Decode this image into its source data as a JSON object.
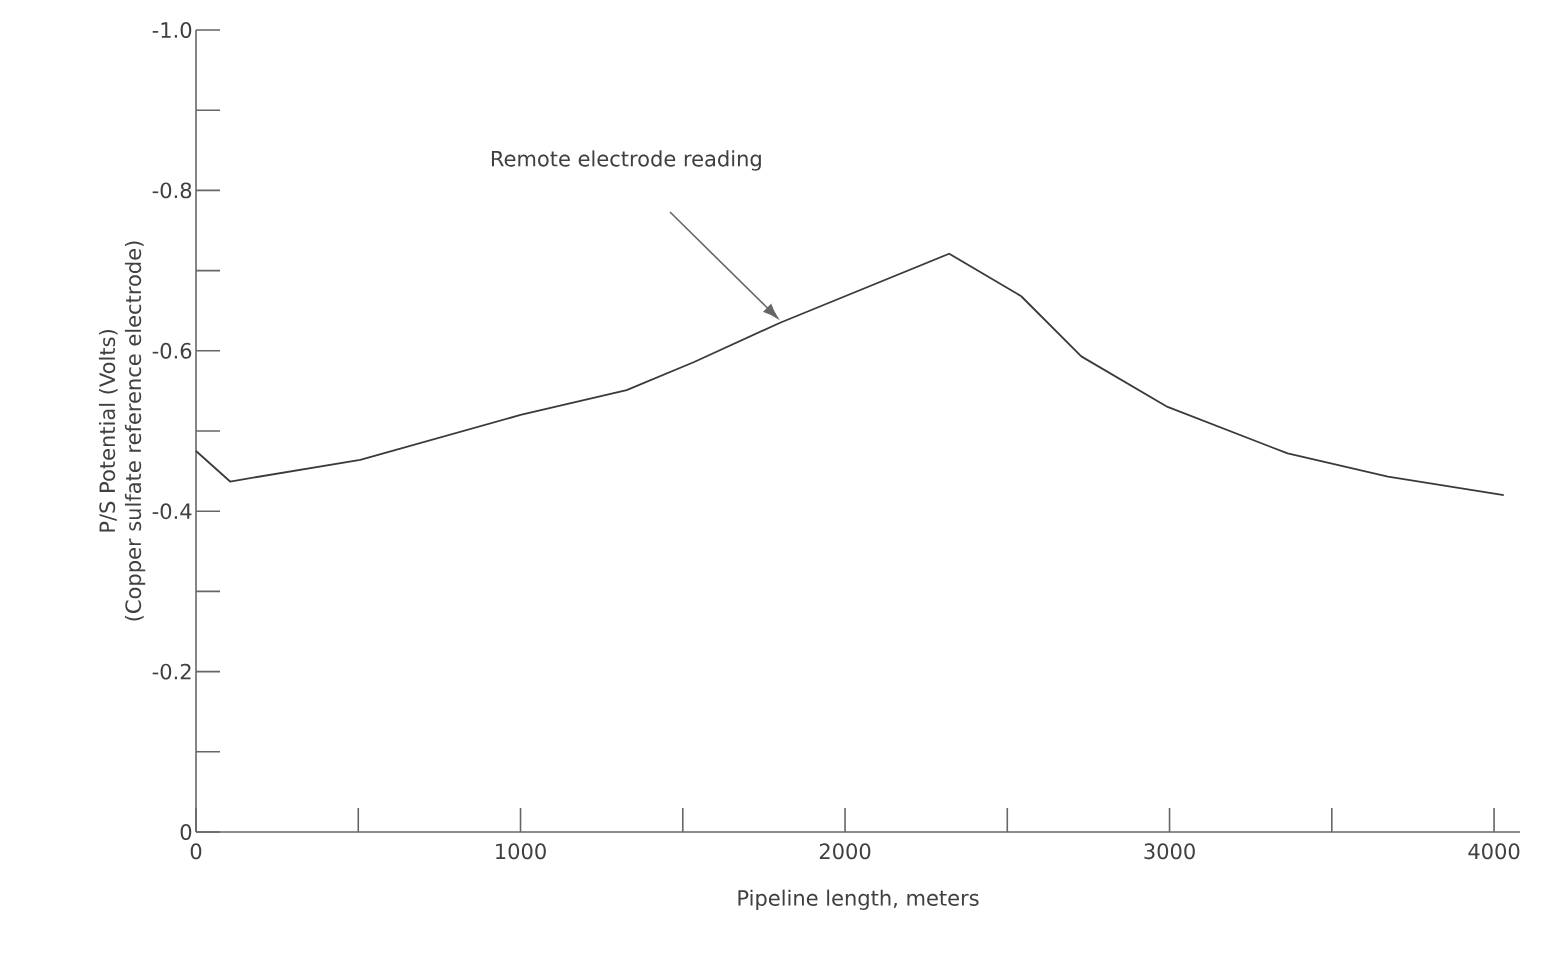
{
  "chart_data": {
    "type": "line",
    "xlabel": "Pipeline length, meters",
    "ylabel": "P/S Potential (Volts) (Copper sulfate reference electrode)",
    "x": [
      0,
      105,
      506,
      1000,
      1327,
      1535,
      1800,
      2321,
      2543,
      2728,
      2994,
      3364,
      3673,
      4030
    ],
    "series": [
      {
        "color": "#3a3a3a",
        "values": [
          -0.475,
          -0.437,
          -0.464,
          -0.52,
          -0.551,
          -0.586,
          -0.635,
          -0.721,
          -0.668,
          -0.593,
          -0.53,
          -0.472,
          -0.443,
          -0.42
        ]
      }
    ],
    "xlim": [
      0,
      4080
    ],
    "ylim": [
      0,
      -1.0
    ],
    "xticks": [
      0,
      {
        "value": 500,
        "label": null
      },
      1000,
      {
        "value": 1500,
        "label": null
      },
      2000,
      {
        "value": 2500,
        "label": null
      },
      3000,
      {
        "value": 3500,
        "label": null
      },
      4000
    ],
    "yticks": [
      0,
      {
        "value": -0.1,
        "label": null
      },
      -0.2,
      {
        "value": -0.3,
        "label": null
      },
      -0.4,
      {
        "value": -0.5,
        "label": null
      },
      -0.6,
      {
        "value": -0.7,
        "label": null
      },
      -0.8,
      {
        "value": -0.9,
        "label": null
      },
      {
        "value": -1.0,
        "label": "-1.0"
      }
    ],
    "annotations": [
      "Remote electrode reading"
    ],
    "grid": false,
    "marker": "none",
    "line_style": "solid"
  }
}
